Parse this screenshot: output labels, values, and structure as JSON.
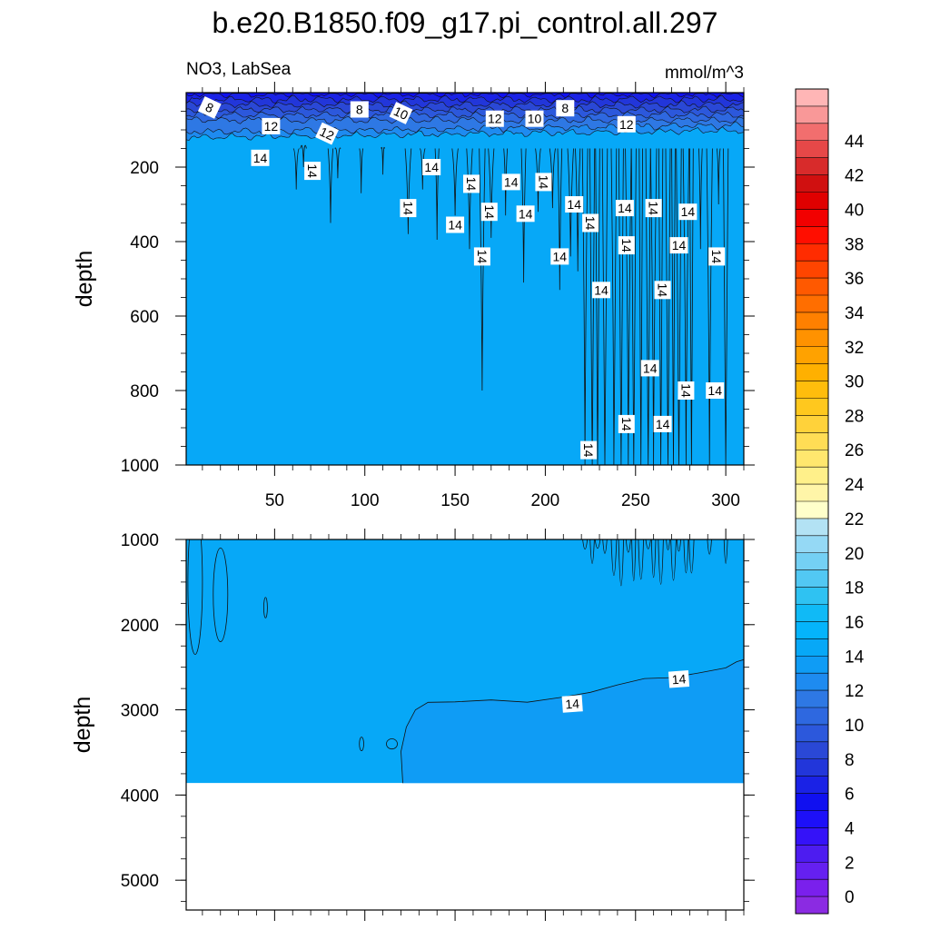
{
  "chart_data": [
    {
      "type": "contour",
      "panel": "upper",
      "title": "b.e20.B1850.f09_g17.pi_control.all.297",
      "left_string": "NO3, LabSea",
      "right_string": "mmol/m^3",
      "xlabel": "",
      "ylabel": "depth",
      "xlim": [
        1,
        310
      ],
      "ylim": [
        1000,
        0
      ],
      "x_ticks": [
        50,
        100,
        150,
        200,
        250,
        300
      ],
      "y_ticks": [
        200,
        400,
        600,
        800,
        1000
      ],
      "surface_value_range": [
        6,
        10
      ],
      "interior_value": 14,
      "contour_interval": 1,
      "contour_labels": [
        {
          "x": 14,
          "y": 40,
          "text": "8"
        },
        {
          "x": 97,
          "y": 45,
          "text": "8"
        },
        {
          "x": 211,
          "y": 42,
          "text": "8"
        },
        {
          "x": 120,
          "y": 55,
          "text": "10"
        },
        {
          "x": 194,
          "y": 70,
          "text": "10"
        },
        {
          "x": 48,
          "y": 90,
          "text": "12"
        },
        {
          "x": 79,
          "y": 110,
          "text": "12"
        },
        {
          "x": 172,
          "y": 70,
          "text": "12"
        },
        {
          "x": 245,
          "y": 85,
          "text": "12"
        },
        {
          "x": 42,
          "y": 175,
          "text": "14"
        },
        {
          "x": 71,
          "y": 210,
          "text": "14"
        },
        {
          "x": 137,
          "y": 200,
          "text": "14"
        },
        {
          "x": 159,
          "y": 245,
          "text": "14"
        },
        {
          "x": 181,
          "y": 240,
          "text": "14"
        },
        {
          "x": 199,
          "y": 240,
          "text": "14"
        },
        {
          "x": 216,
          "y": 300,
          "text": "14"
        },
        {
          "x": 124,
          "y": 310,
          "text": "14"
        },
        {
          "x": 150,
          "y": 355,
          "text": "14"
        },
        {
          "x": 169,
          "y": 320,
          "text": "14"
        },
        {
          "x": 189,
          "y": 325,
          "text": "14"
        },
        {
          "x": 225,
          "y": 350,
          "text": "14"
        },
        {
          "x": 244,
          "y": 310,
          "text": "14"
        },
        {
          "x": 260,
          "y": 310,
          "text": "14"
        },
        {
          "x": 279,
          "y": 320,
          "text": "14"
        },
        {
          "x": 165,
          "y": 440,
          "text": "14"
        },
        {
          "x": 208,
          "y": 440,
          "text": "14"
        },
        {
          "x": 245,
          "y": 410,
          "text": "14"
        },
        {
          "x": 274,
          "y": 410,
          "text": "14"
        },
        {
          "x": 295,
          "y": 440,
          "text": "14"
        },
        {
          "x": 231,
          "y": 530,
          "text": "14"
        },
        {
          "x": 265,
          "y": 530,
          "text": "14"
        },
        {
          "x": 258,
          "y": 740,
          "text": "14"
        },
        {
          "x": 278,
          "y": 800,
          "text": "14"
        },
        {
          "x": 294,
          "y": 800,
          "text": "14"
        },
        {
          "x": 245,
          "y": 890,
          "text": "14"
        },
        {
          "x": 265,
          "y": 890,
          "text": "14"
        },
        {
          "x": 224,
          "y": 960,
          "text": "14"
        }
      ]
    },
    {
      "type": "contour",
      "panel": "lower",
      "xlabel": "",
      "ylabel": "depth",
      "xlim": [
        1,
        310
      ],
      "ylim": [
        5350,
        1000
      ],
      "y_ticks": [
        1000,
        2000,
        3000,
        4000,
        5000
      ],
      "sea_floor_depth": 3860,
      "values": {
        "upper_water": 14.5,
        "deep_water": 13.5
      },
      "contour_labels": [
        {
          "x": 215,
          "y": 2930,
          "text": "14"
        },
        {
          "x": 274,
          "y": 2640,
          "text": "14"
        }
      ]
    }
  ],
  "colorbar": {
    "tick_labels": [
      "0",
      "2",
      "4",
      "6",
      "8",
      "10",
      "12",
      "14",
      "16",
      "18",
      "20",
      "22",
      "24",
      "26",
      "28",
      "30",
      "32",
      "34",
      "36",
      "38",
      "40",
      "42",
      "44"
    ],
    "interval": 1,
    "colors": [
      "#8b2be2",
      "#7a20ec",
      "#6520f0",
      "#4d1cf0",
      "#3512f8",
      "#1d10f8",
      "#1010f0",
      "#1a22e6",
      "#2236da",
      "#2a48d6",
      "#2c58dc",
      "#2e68e0",
      "#2e78e4",
      "#1e8bf0",
      "#0f9cf5",
      "#07a8f7",
      "#05b4fb",
      "#10baf6",
      "#2fc2f2",
      "#52c8f3",
      "#74d0f4",
      "#95d9f5",
      "#b3e2f4",
      "#ffffca",
      "#fff5a8",
      "#fff08a",
      "#ffe76e",
      "#ffdd55",
      "#ffd23a",
      "#ffc81e",
      "#ffbd0c",
      "#ffb000",
      "#ffa200",
      "#ff9200",
      "#ff8000",
      "#ff6e00",
      "#ff5900",
      "#ff4500",
      "#ff2c00",
      "#ff0e00",
      "#f20000",
      "#e00000",
      "#d01010",
      "#d82b2b",
      "#e64848",
      "#f26e6e",
      "#f99898",
      "#ffb6b6"
    ]
  }
}
